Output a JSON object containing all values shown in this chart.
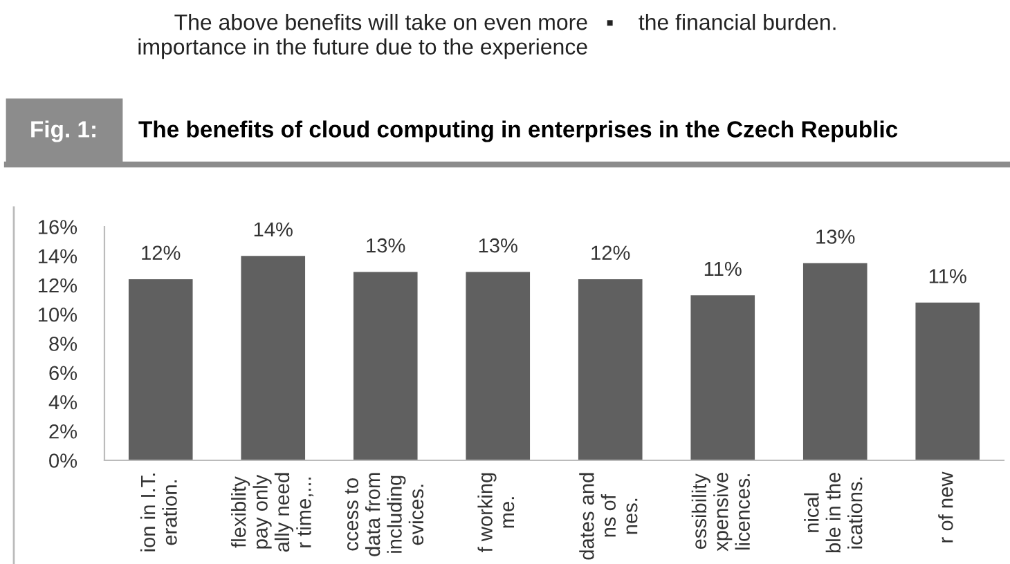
{
  "chart_data": {
    "type": "bar",
    "title": "The benefits of cloud computing in enterprises in the Czech Republic",
    "subtitle": "Fig. 1:",
    "annotations": [
      "The above benefits will take on even more\nimportance in the future due to the experience",
      "▪    the financial burden."
    ],
    "categories": [
      "ion in I.T.\neration.",
      "flexiblity\npay only\nally need\nr time,...",
      "ccess to\ndata from\nincluding\nevices.",
      "f working\nme.",
      "dates and\nns of\nnes.",
      "essibility\nxpensive\nlicences.",
      "nical\nble in the\nications.",
      "r of new"
    ],
    "values": [
      12.4,
      14.0,
      12.9,
      12.9,
      12.4,
      11.3,
      13.5,
      10.8
    ],
    "value_labels": [
      "12%",
      "14%",
      "13%",
      "13%",
      "12%",
      "11%",
      "13%",
      "11%"
    ],
    "color": "#606060",
    "ylim": [
      0,
      16
    ],
    "yticks": [
      {
        "value": 0,
        "label": "0%"
      },
      {
        "value": 2,
        "label": "2%"
      },
      {
        "value": 4,
        "label": "4%"
      },
      {
        "value": 6,
        "label": "6%"
      },
      {
        "value": 8,
        "label": "8%"
      },
      {
        "value": 10,
        "label": "10%"
      },
      {
        "value": 12,
        "label": "12%"
      },
      {
        "value": 14,
        "label": "14%"
      },
      {
        "value": 16,
        "label": "16%"
      }
    ],
    "grid": false,
    "legend": false
  }
}
